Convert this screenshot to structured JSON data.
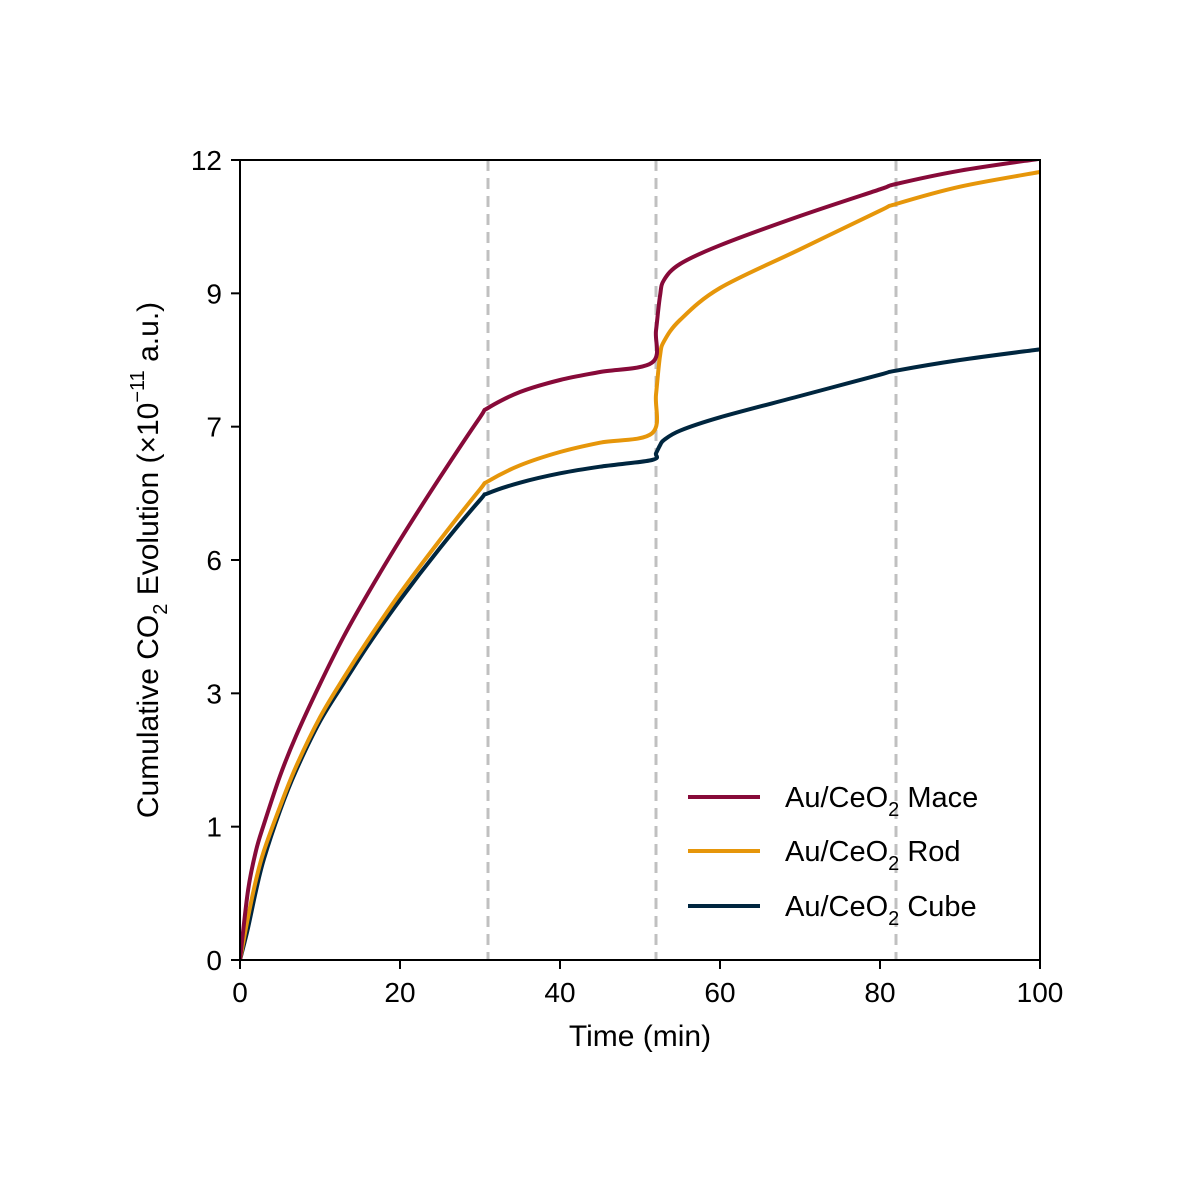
{
  "chart_data": {
    "type": "line",
    "title": "",
    "xlabel": "Time (min)",
    "ylabel": {
      "prefix": "Cumulative CO",
      "sub": "2",
      "middle": " Evolution (×10",
      "sup": "−11",
      "suffix": " a.u.)"
    },
    "xlim": [
      0,
      100
    ],
    "ylim_ticks_positions": [
      0,
      1,
      2,
      3,
      4,
      5,
      6
    ],
    "x_ticks": [
      0,
      20,
      40,
      60,
      80,
      100
    ],
    "x_tick_labels": [
      "0",
      "20",
      "40",
      "60",
      "80",
      "100"
    ],
    "y_tick_labels": [
      "0",
      "1",
      "3",
      "6",
      "7",
      "9",
      "12"
    ],
    "vlines": [
      31,
      52,
      82
    ],
    "vline_color": "#c0c0c0",
    "grid": false,
    "legend_position": "lower-right",
    "series": [
      {
        "name": "Au/CeO₂ Mace",
        "label_main": "Au/CeO",
        "label_sub": "2",
        "label_rest": " Mace",
        "color": "#870a39",
        "x": [
          0,
          1,
          2,
          3,
          5,
          7,
          10,
          13,
          16,
          20,
          25,
          30,
          31,
          35,
          40,
          45,
          51.5,
          52,
          52.5,
          53,
          55,
          60,
          70,
          80,
          82,
          90,
          100
        ],
        "y": [
          0,
          0.52,
          0.82,
          1.02,
          1.38,
          1.68,
          2.07,
          2.43,
          2.75,
          3.15,
          3.62,
          4.07,
          4.14,
          4.26,
          4.35,
          4.41,
          4.48,
          4.72,
          4.98,
          5.1,
          5.22,
          5.36,
          5.58,
          5.78,
          5.82,
          5.92,
          6.01
        ]
      },
      {
        "name": "Au/CeO₂ Rod",
        "label_main": "Au/CeO",
        "label_sub": "2",
        "label_rest": " Rod",
        "color": "#e6960a",
        "x": [
          0,
          1,
          2,
          3,
          5,
          7,
          10,
          13,
          16,
          20,
          25,
          30,
          31,
          35,
          40,
          45,
          51.5,
          52,
          52.5,
          53,
          55,
          60,
          70,
          80,
          82,
          90,
          100
        ],
        "y": [
          0,
          0.32,
          0.6,
          0.82,
          1.15,
          1.45,
          1.82,
          2.12,
          2.4,
          2.75,
          3.15,
          3.53,
          3.59,
          3.71,
          3.81,
          3.88,
          3.95,
          4.24,
          4.53,
          4.64,
          4.8,
          5.04,
          5.33,
          5.62,
          5.67,
          5.8,
          5.91
        ]
      },
      {
        "name": "Au/CeO₂ Cube",
        "label_main": "Au/CeO",
        "label_sub": "2",
        "label_rest": " Cube",
        "color": "#00263f",
        "x": [
          0,
          1,
          2,
          3,
          5,
          7,
          10,
          13,
          16,
          20,
          25,
          30,
          31,
          35,
          40,
          45,
          51.5,
          52,
          52.5,
          53,
          55,
          60,
          70,
          80,
          82,
          90,
          100
        ],
        "y": [
          0,
          0.24,
          0.52,
          0.76,
          1.12,
          1.42,
          1.79,
          2.08,
          2.36,
          2.7,
          3.09,
          3.45,
          3.5,
          3.58,
          3.65,
          3.7,
          3.75,
          3.8,
          3.86,
          3.9,
          3.97,
          4.07,
          4.23,
          4.39,
          4.42,
          4.5,
          4.58
        ]
      }
    ]
  }
}
